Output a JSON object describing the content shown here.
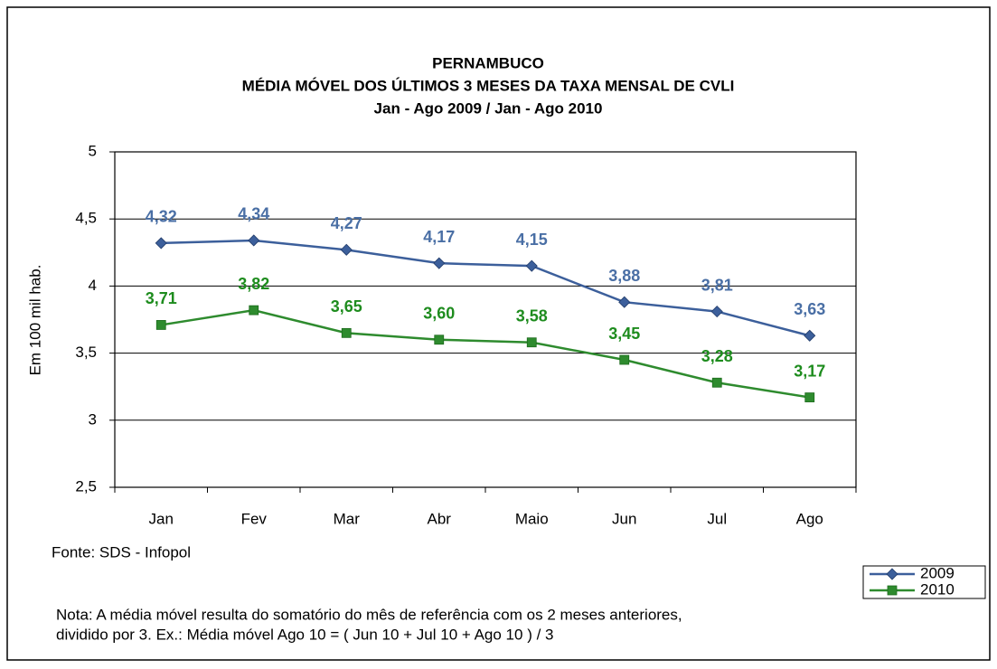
{
  "chart_data": {
    "type": "line",
    "title": [
      "PERNAMBUCO",
      "MÉDIA MÓVEL DOS ÚLTIMOS 3 MESES DA TAXA MENSAL DE CVLI",
      "Jan - Ago 2009 / Jan - Ago 2010"
    ],
    "y_label": "Em 100 mil hab.",
    "source": "Fonte: SDS - Infopol",
    "note": [
      "Nota: A média móvel resulta do somatório do mês de referência com os 2 meses anteriores,",
      "dividido por 3. Ex.: Média móvel  Ago 10 = ( Jun 10  + Jul 10  + Ago 10 ) / 3"
    ],
    "categories": [
      "Jan",
      "Fev",
      "Mar",
      "Abr",
      "Maio",
      "Jun",
      "Jul",
      "Ago"
    ],
    "series": [
      {
        "name": "2009",
        "color": "#3c5f9b",
        "label_color": "#4a6fa5",
        "marker": "diamond",
        "values": [
          4.32,
          4.34,
          4.27,
          4.17,
          4.15,
          3.88,
          3.81,
          3.63
        ],
        "value_labels": [
          "4,32",
          "4,34",
          "4,27",
          "4,17",
          "4,15",
          "3,88",
          "3,81",
          "3,63"
        ]
      },
      {
        "name": "2010",
        "color": "#2e8b2e",
        "label_color": "#1e8c1e",
        "marker": "square",
        "values": [
          3.71,
          3.82,
          3.65,
          3.6,
          3.58,
          3.45,
          3.28,
          3.17
        ],
        "value_labels": [
          "3,71",
          "3,82",
          "3,65",
          "3,60",
          "3,58",
          "3,45",
          "3,28",
          "3,17"
        ]
      }
    ],
    "ylim": [
      2.5,
      5
    ],
    "yticks": [
      {
        "value": 2.5,
        "label": "2,5"
      },
      3,
      {
        "value": 3.5,
        "label": "3,5"
      },
      4,
      {
        "value": 4.5,
        "label": "4,5"
      },
      5
    ],
    "grid": true,
    "legend": "bottom-right"
  }
}
